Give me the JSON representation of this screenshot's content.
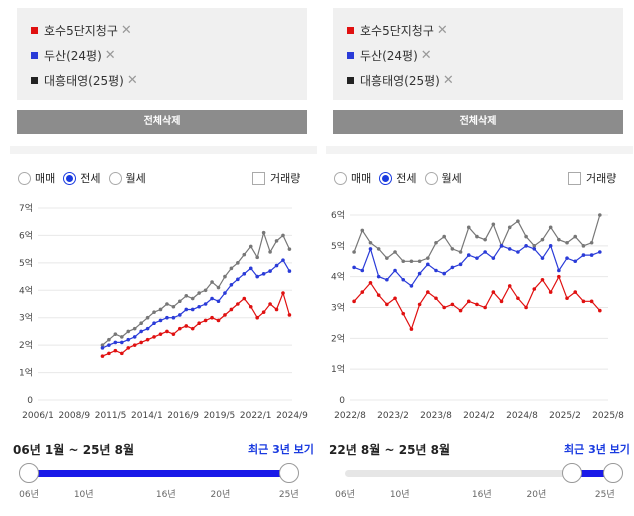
{
  "left": {
    "compare_items": [
      {
        "name": "호수5단지청구",
        "color": "#e01010"
      },
      {
        "name": "두산(24평)",
        "color": "#2a3bd8"
      },
      {
        "name": "대흥태영(25평)",
        "color": "#222222"
      }
    ],
    "remove_mark": "✕",
    "clear_button": "전체삭제",
    "radios": [
      {
        "label": "매매",
        "checked": false
      },
      {
        "label": "전세",
        "checked": true
      },
      {
        "label": "월세",
        "checked": false
      }
    ],
    "volume_label": "거래량",
    "range_label": "06년 1월 ~ 25년 8월",
    "recent_link": "최근 3년 보기",
    "slider_ticks": [
      "06년",
      "10년",
      "16년",
      "20년",
      "25년"
    ],
    "slider_range": {
      "start_year": 2006,
      "end_year": 2025
    }
  },
  "right": {
    "compare_items": [
      {
        "name": "호수5단지청구",
        "color": "#e01010"
      },
      {
        "name": "두산(24평)",
        "color": "#2a3bd8"
      },
      {
        "name": "대흥태영(25평)",
        "color": "#222222"
      }
    ],
    "remove_mark": "✕",
    "clear_button": "전체삭제",
    "radios": [
      {
        "label": "매매",
        "checked": false
      },
      {
        "label": "전세",
        "checked": true
      },
      {
        "label": "월세",
        "checked": false
      }
    ],
    "volume_label": "거래량",
    "range_label": "22년 8월 ~ 25년 8월",
    "recent_link": "최근 3년 보기",
    "slider_ticks": [
      "06년",
      "10년",
      "16년",
      "20년",
      "25년"
    ],
    "slider_range": {
      "start_year": 2022.6,
      "end_year": 2025.6
    }
  },
  "chart_data": [
    {
      "type": "line",
      "ylim": [
        0,
        7
      ],
      "y_ticks": [
        "0",
        "1억",
        "2억",
        "3억",
        "4억",
        "5억",
        "6억",
        "7억"
      ],
      "x_ticks": [
        "2006/1",
        "2008/9",
        "2011/5",
        "2014/1",
        "2016/9",
        "2019/5",
        "2022/1",
        "2024/9"
      ],
      "xlim": [
        2006.0,
        2025.7
      ],
      "series": [
        {
          "name": "대흥태영(25평)",
          "color": "#777777",
          "x": [
            2011.0,
            2011.5,
            2012.0,
            2012.5,
            2013.0,
            2013.5,
            2014.0,
            2014.5,
            2015.0,
            2015.5,
            2016.0,
            2016.5,
            2017.0,
            2017.5,
            2018.0,
            2018.5,
            2019.0,
            2019.5,
            2020.0,
            2020.5,
            2021.0,
            2021.5,
            2022.0,
            2022.5,
            2023.0,
            2023.5,
            2024.0,
            2024.5,
            2025.0,
            2025.5
          ],
          "y": [
            2.0,
            2.2,
            2.4,
            2.3,
            2.5,
            2.6,
            2.8,
            3.0,
            3.2,
            3.3,
            3.5,
            3.4,
            3.6,
            3.8,
            3.7,
            3.9,
            4.0,
            4.3,
            4.1,
            4.5,
            4.8,
            5.0,
            5.3,
            5.6,
            5.2,
            6.1,
            5.4,
            5.8,
            6.0,
            5.5
          ]
        },
        {
          "name": "두산(24평)",
          "color": "#2a3bd8",
          "x": [
            2011.0,
            2011.5,
            2012.0,
            2012.5,
            2013.0,
            2013.5,
            2014.0,
            2014.5,
            2015.0,
            2015.5,
            2016.0,
            2016.5,
            2017.0,
            2017.5,
            2018.0,
            2018.5,
            2019.0,
            2019.5,
            2020.0,
            2020.5,
            2021.0,
            2021.5,
            2022.0,
            2022.5,
            2023.0,
            2023.5,
            2024.0,
            2024.5,
            2025.0,
            2025.5
          ],
          "y": [
            1.9,
            2.0,
            2.1,
            2.1,
            2.2,
            2.3,
            2.5,
            2.6,
            2.8,
            2.9,
            3.0,
            3.0,
            3.1,
            3.3,
            3.3,
            3.4,
            3.5,
            3.7,
            3.6,
            3.9,
            4.2,
            4.4,
            4.6,
            4.8,
            4.5,
            4.6,
            4.7,
            4.9,
            5.1,
            4.7
          ]
        },
        {
          "name": "호수5단지청구",
          "color": "#e01010",
          "x": [
            2011.0,
            2011.5,
            2012.0,
            2012.5,
            2013.0,
            2013.5,
            2014.0,
            2014.5,
            2015.0,
            2015.5,
            2016.0,
            2016.5,
            2017.0,
            2017.5,
            2018.0,
            2018.5,
            2019.0,
            2019.5,
            2020.0,
            2020.5,
            2021.0,
            2021.5,
            2022.0,
            2022.5,
            2023.0,
            2023.5,
            2024.0,
            2024.5,
            2025.0,
            2025.5
          ],
          "y": [
            1.6,
            1.7,
            1.8,
            1.7,
            1.9,
            2.0,
            2.1,
            2.2,
            2.3,
            2.4,
            2.5,
            2.4,
            2.6,
            2.7,
            2.6,
            2.8,
            2.9,
            3.0,
            2.9,
            3.1,
            3.3,
            3.5,
            3.7,
            3.4,
            3.0,
            3.2,
            3.5,
            3.3,
            3.9,
            3.1
          ]
        }
      ]
    },
    {
      "type": "line",
      "ylim": [
        0,
        6
      ],
      "y_ticks": [
        "0",
        "1억",
        "2억",
        "3억",
        "4억",
        "5억",
        "6억"
      ],
      "x_ticks": [
        "2022/8",
        "2023/2",
        "2023/8",
        "2024/2",
        "2024/8",
        "2025/2",
        "2025/8"
      ],
      "xlim": [
        2022.55,
        2025.7
      ],
      "series": [
        {
          "name": "대흥태영(25평)",
          "color": "#777777",
          "x": [
            2022.6,
            2022.7,
            2022.8,
            2022.9,
            2023.0,
            2023.1,
            2023.2,
            2023.3,
            2023.4,
            2023.5,
            2023.6,
            2023.7,
            2023.8,
            2023.9,
            2024.0,
            2024.1,
            2024.2,
            2024.3,
            2024.4,
            2024.5,
            2024.6,
            2024.7,
            2024.8,
            2024.9,
            2025.0,
            2025.1,
            2025.2,
            2025.3,
            2025.4,
            2025.5,
            2025.6
          ],
          "y": [
            4.8,
            5.5,
            5.1,
            4.9,
            4.6,
            4.8,
            4.5,
            4.5,
            4.5,
            4.6,
            5.1,
            5.3,
            4.9,
            4.8,
            5.6,
            5.3,
            5.2,
            5.7,
            5.0,
            5.6,
            5.8,
            5.3,
            5.0,
            5.2,
            5.6,
            5.2,
            5.1,
            5.3,
            5.0,
            5.1,
            6.0
          ]
        },
        {
          "name": "두산(24평)",
          "color": "#2a3bd8",
          "x": [
            2022.6,
            2022.7,
            2022.8,
            2022.9,
            2023.0,
            2023.1,
            2023.2,
            2023.3,
            2023.4,
            2023.5,
            2023.6,
            2023.7,
            2023.8,
            2023.9,
            2024.0,
            2024.1,
            2024.2,
            2024.3,
            2024.4,
            2024.5,
            2024.6,
            2024.7,
            2024.8,
            2024.9,
            2025.0,
            2025.1,
            2025.2,
            2025.3,
            2025.4,
            2025.5,
            2025.6
          ],
          "y": [
            4.3,
            4.2,
            4.9,
            4.0,
            3.9,
            4.2,
            3.9,
            3.7,
            4.1,
            4.4,
            4.2,
            4.1,
            4.3,
            4.4,
            4.7,
            4.6,
            4.8,
            4.6,
            5.0,
            4.9,
            4.8,
            5.0,
            4.9,
            4.6,
            5.0,
            4.2,
            4.6,
            4.5,
            4.7,
            4.7,
            4.8
          ]
        },
        {
          "name": "호수5단지청구",
          "color": "#e01010",
          "x": [
            2022.6,
            2022.7,
            2022.8,
            2022.9,
            2023.0,
            2023.1,
            2023.2,
            2023.3,
            2023.4,
            2023.5,
            2023.6,
            2023.7,
            2023.8,
            2023.9,
            2024.0,
            2024.1,
            2024.2,
            2024.3,
            2024.4,
            2024.5,
            2024.6,
            2024.7,
            2024.8,
            2024.9,
            2025.0,
            2025.1,
            2025.2,
            2025.3,
            2025.4,
            2025.5,
            2025.6
          ],
          "y": [
            3.2,
            3.5,
            3.8,
            3.4,
            3.1,
            3.3,
            2.8,
            2.3,
            3.1,
            3.5,
            3.3,
            3.0,
            3.1,
            2.9,
            3.2,
            3.1,
            3.0,
            3.5,
            3.2,
            3.7,
            3.3,
            3.0,
            3.6,
            3.9,
            3.5,
            4.0,
            3.3,
            3.5,
            3.2,
            3.2,
            2.9
          ]
        }
      ]
    }
  ]
}
